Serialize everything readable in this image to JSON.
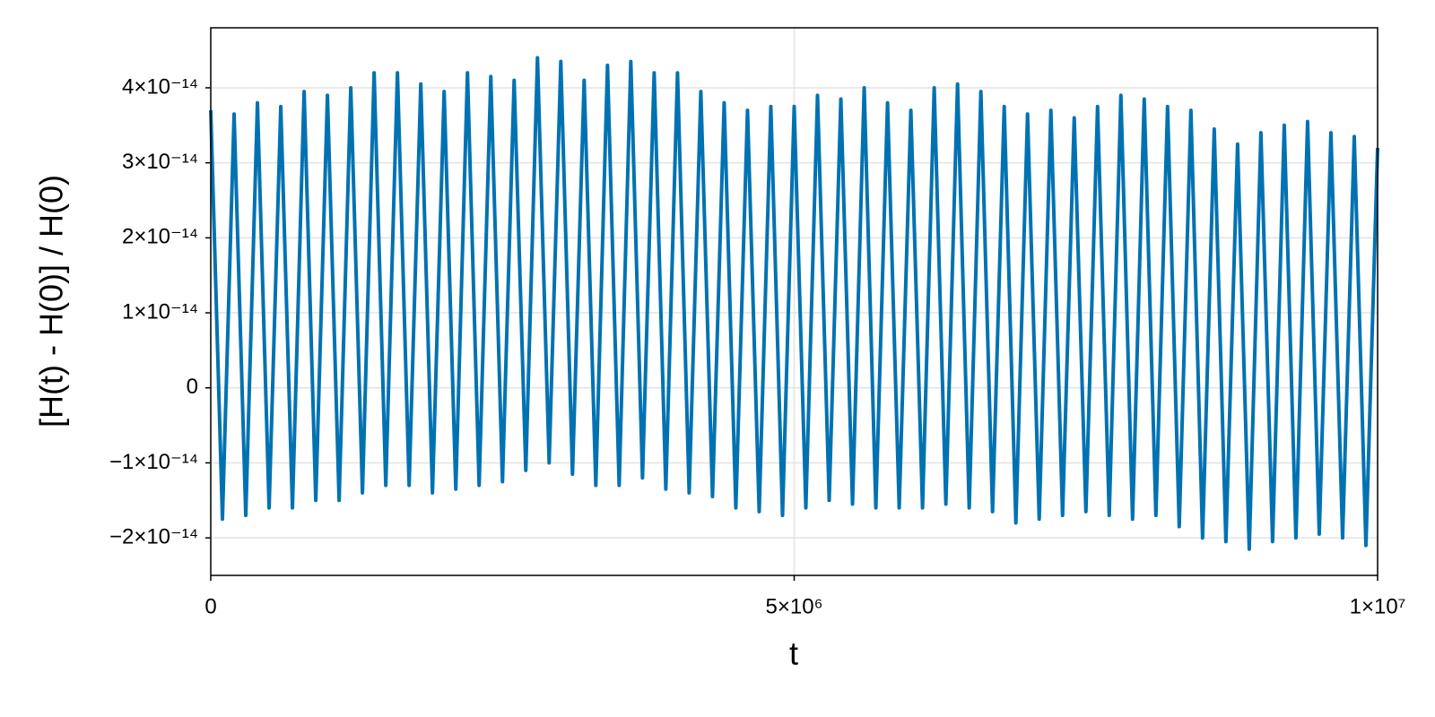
{
  "chart_data": {
    "type": "line",
    "x_label": "t",
    "y_label": "[H(t) - H(0)] / H(0)",
    "color": "#0072b2",
    "grid": true,
    "xlim": [
      0,
      10000000
    ],
    "ylim": [
      -2.5e-14,
      4.8e-14
    ],
    "xticks": [
      0,
      {
        "value": 5000000,
        "label": "5×10⁶"
      },
      {
        "value": 10000000,
        "label": "1×10⁷"
      }
    ],
    "yticks": [
      {
        "value": -2e-14,
        "label": "−2×10⁻¹⁴"
      },
      {
        "value": -1e-14,
        "label": "−1×10⁻¹⁴"
      },
      0,
      {
        "value": 1e-14,
        "label": "1×10⁻¹⁴"
      },
      {
        "value": 2e-14,
        "label": "2×10⁻¹⁴"
      },
      {
        "value": 3e-14,
        "label": "3×10⁻¹⁴"
      },
      {
        "value": 4e-14,
        "label": "4×10⁻¹⁴"
      }
    ],
    "x": [
      0,
      100000,
      200000,
      300000,
      400000,
      500000,
      600000,
      700000,
      800000,
      900000,
      1000000,
      1100000,
      1200000,
      1300000,
      1400000,
      1500000,
      1600000,
      1700000,
      1800000,
      1900000,
      2000000,
      2100000,
      2200000,
      2300000,
      2400000,
      2500000,
      2600000,
      2700000,
      2800000,
      2900000,
      3000000,
      3100000,
      3200000,
      3300000,
      3400000,
      3500000,
      3600000,
      3700000,
      3800000,
      3900000,
      4000000,
      4100000,
      4200000,
      4300000,
      4400000,
      4500000,
      4600000,
      4700000,
      4800000,
      4900000,
      5000000,
      5100000,
      5200000,
      5300000,
      5400000,
      5500000,
      5600000,
      5700000,
      5800000,
      5900000,
      6000000,
      6100000,
      6200000,
      6300000,
      6400000,
      6500000,
      6600000,
      6700000,
      6800000,
      6900000,
      7000000,
      7100000,
      7200000,
      7300000,
      7400000,
      7500000,
      7600000,
      7700000,
      7800000,
      7900000,
      8000000,
      8100000,
      8200000,
      8300000,
      8400000,
      8500000,
      8600000,
      8700000,
      8800000,
      8900000,
      9000000,
      9100000,
      9200000,
      9300000,
      9400000,
      9500000,
      9600000,
      9700000,
      9800000,
      9900000,
      10000000
    ],
    "values": [
      3.7e-14,
      -1.75e-14,
      3.65e-14,
      -1.7e-14,
      3.8e-14,
      -1.6e-14,
      3.75e-14,
      -1.6e-14,
      3.95e-14,
      -1.5e-14,
      3.9e-14,
      -1.5e-14,
      4e-14,
      -1.4e-14,
      4.2e-14,
      -1.3e-14,
      4.2e-14,
      -1.3e-14,
      4.05e-14,
      -1.4e-14,
      3.95e-14,
      -1.35e-14,
      4.2e-14,
      -1.3e-14,
      4.15e-14,
      -1.25e-14,
      4.1e-14,
      -1.1e-14,
      4.4e-14,
      -1e-14,
      4.35e-14,
      -1.15e-14,
      4.1e-14,
      -1.3e-14,
      4.3e-14,
      -1.3e-14,
      4.35e-14,
      -1.2e-14,
      4.2e-14,
      -1.35e-14,
      4.2e-14,
      -1.4e-14,
      3.95e-14,
      -1.45e-14,
      3.8e-14,
      -1.6e-14,
      3.7e-14,
      -1.65e-14,
      3.75e-14,
      -1.7e-14,
      3.75e-14,
      -1.6e-14,
      3.9e-14,
      -1.5e-14,
      3.85e-14,
      -1.55e-14,
      4e-14,
      -1.6e-14,
      3.8e-14,
      -1.6e-14,
      3.7e-14,
      -1.6e-14,
      4e-14,
      -1.55e-14,
      4.05e-14,
      -1.6e-14,
      3.95e-14,
      -1.65e-14,
      3.75e-14,
      -1.8e-14,
      3.65e-14,
      -1.75e-14,
      3.7e-14,
      -1.7e-14,
      3.6e-14,
      -1.65e-14,
      3.75e-14,
      -1.7e-14,
      3.9e-14,
      -1.75e-14,
      3.85e-14,
      -1.7e-14,
      3.75e-14,
      -1.85e-14,
      3.7e-14,
      -2e-14,
      3.45e-14,
      -2.05e-14,
      3.25e-14,
      -2.15e-14,
      3.4e-14,
      -2.05e-14,
      3.5e-14,
      -2e-14,
      3.55e-14,
      -1.95e-14,
      3.4e-14,
      -2e-14,
      3.35e-14,
      -2.1e-14,
      3.2e-14
    ]
  }
}
